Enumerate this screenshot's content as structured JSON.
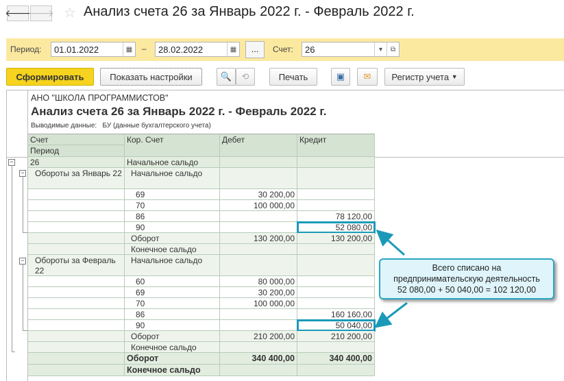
{
  "window": {
    "title": "Анализ счета 26 за Январь 2022 г. - Февраль 2022 г."
  },
  "filters": {
    "period_label": "Период:",
    "date_from": "01.01.2022",
    "dash": "–",
    "date_to": "28.02.2022",
    "more": "...",
    "account_label": "Счет:",
    "account": "26"
  },
  "toolbar": {
    "generate": "Сформировать",
    "show_settings": "Показать настройки",
    "print": "Печать",
    "register": "Регистр учета"
  },
  "report": {
    "org": "АНО \"ШКОЛА ПРОГРАММИСТОВ\"",
    "title": "Анализ счета 26 за Январь 2022 г. - Февраль 2022 г.",
    "data_label": "Выводимые данные:   БУ (данные бухгалтерского учета)",
    "headers": {
      "account": "Счет",
      "period": "Период",
      "corr": "Кор. Счет",
      "debit": "Дебет",
      "credit": "Кредит"
    },
    "rows": [
      {
        "a": "26",
        "k": "Начальное сальдо",
        "d": "",
        "c": "",
        "style": "g"
      },
      {
        "a": "Обороты за Январь 22",
        "k": "Начальное сальдо",
        "d": "",
        "c": "",
        "style": "p"
      },
      {
        "a": "",
        "k": "69",
        "d": "30 200,00",
        "c": "",
        "style": "w"
      },
      {
        "a": "",
        "k": "70",
        "d": "100 000,00",
        "c": "",
        "style": "w"
      },
      {
        "a": "",
        "k": "86",
        "d": "",
        "c": "78 120,00",
        "style": "w"
      },
      {
        "a": "",
        "k": "90",
        "d": "",
        "c": "52 080,00",
        "style": "w",
        "highlight": true
      },
      {
        "a": "",
        "k": "Оборот",
        "d": "130 200,00",
        "c": "130 200,00",
        "style": "p"
      },
      {
        "a": "",
        "k": "Конечное сальдо",
        "d": "",
        "c": "",
        "style": "p"
      },
      {
        "a": "Обороты за Февраль 22",
        "k": "Начальное сальдо",
        "d": "",
        "c": "",
        "style": "p"
      },
      {
        "a": "",
        "k": "60",
        "d": "80 000,00",
        "c": "",
        "style": "w"
      },
      {
        "a": "",
        "k": "69",
        "d": "30 200,00",
        "c": "",
        "style": "w"
      },
      {
        "a": "",
        "k": "70",
        "d": "100 000,00",
        "c": "",
        "style": "w"
      },
      {
        "a": "",
        "k": "86",
        "d": "",
        "c": "160 160,00",
        "style": "w"
      },
      {
        "a": "",
        "k": "90",
        "d": "",
        "c": "50 040,00",
        "style": "w",
        "highlight": true
      },
      {
        "a": "",
        "k": "Оборот",
        "d": "210 200,00",
        "c": "210 200,00",
        "style": "p"
      },
      {
        "a": "",
        "k": "Конечное сальдо",
        "d": "",
        "c": "",
        "style": "p"
      },
      {
        "a": "",
        "k": "Оборот",
        "d": "340 400,00",
        "c": "340 400,00",
        "style": "gb"
      },
      {
        "a": "",
        "k": "Конечное сальдо",
        "d": "",
        "c": "",
        "style": "gb"
      }
    ]
  },
  "callout": {
    "line1": "Всего списано на",
    "line2": "предпринимательскую деятельность",
    "line3": "52 080,00 + 50 040,00 = 102 120,00"
  },
  "colors": {
    "accent": "#1a9ab8",
    "generate_button": "#f5d31e",
    "filter_bar": "#fbe9a0",
    "header_bg": "#d5e3d2"
  }
}
